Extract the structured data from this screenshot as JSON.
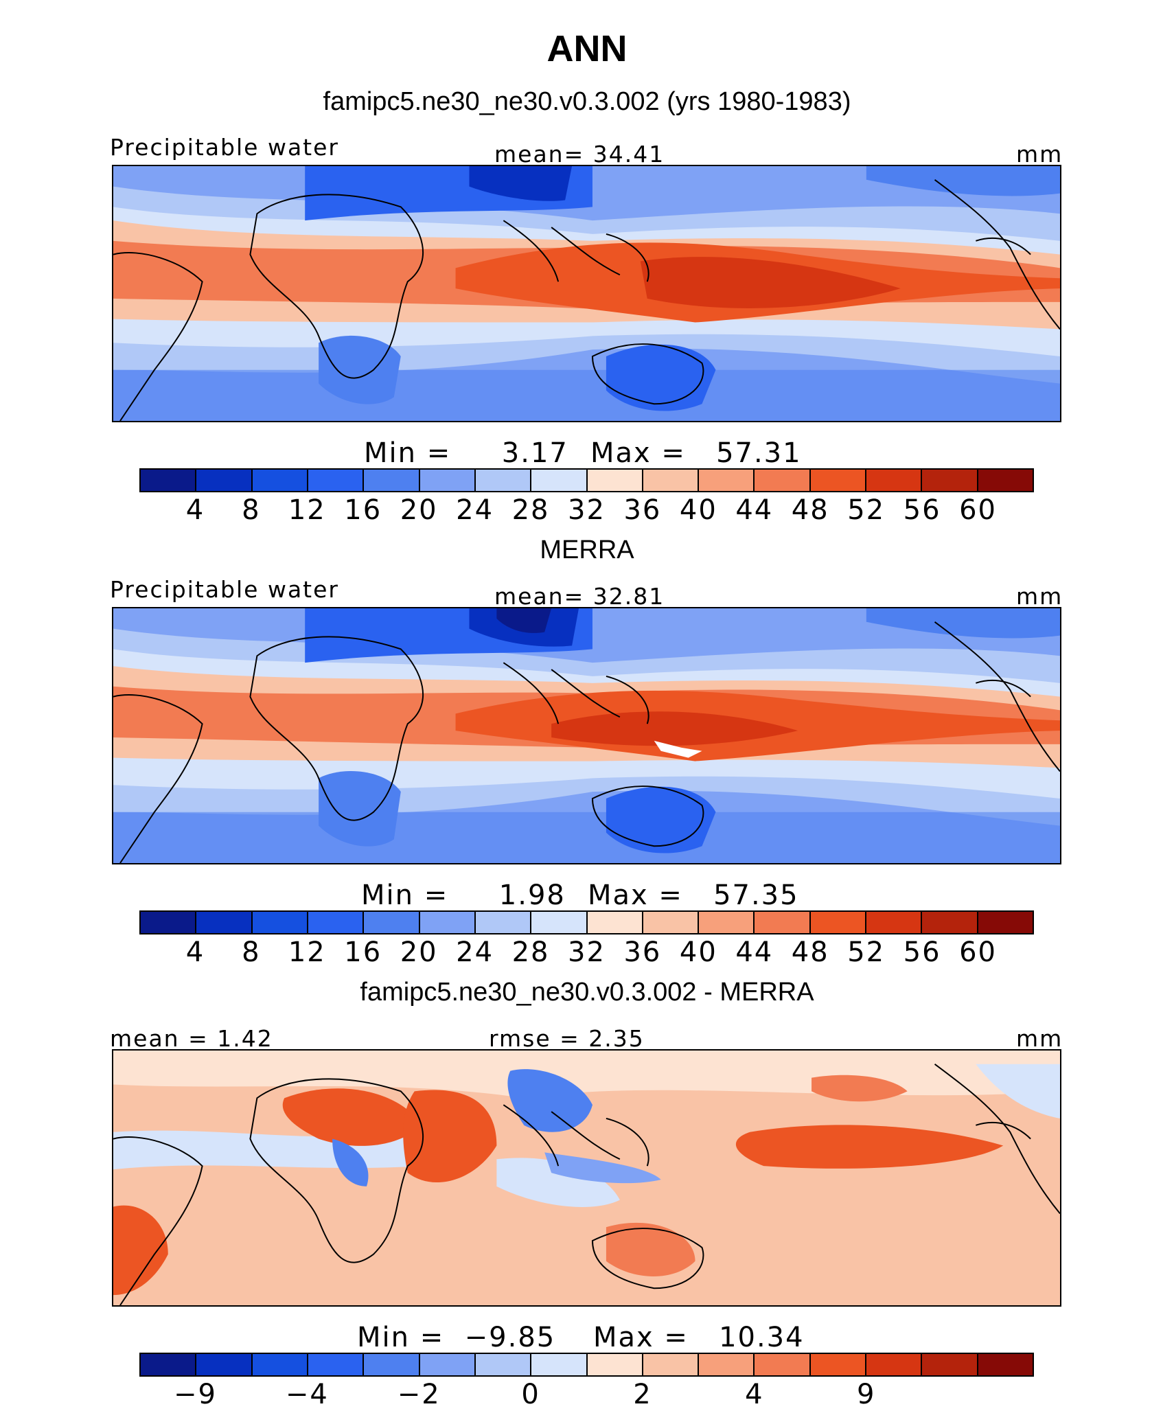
{
  "title": "ANN",
  "colors": {
    "scale": [
      "#0a1a8a",
      "#0730c0",
      "#1550e0",
      "#2a62f0",
      "#4e80f0",
      "#7fa2f5",
      "#b0c8f7",
      "#d6e4fb",
      "#fde3d2",
      "#f9c3a6",
      "#f7a07b",
      "#f27b52",
      "#ec5523",
      "#d63612",
      "#b4230c",
      "#860a06"
    ]
  },
  "panels": [
    {
      "id": "model",
      "heading": "famipc5.ne30_ne30.v0.3.002 (yrs 1980-1983)",
      "left_label": "Precipitable water",
      "center_label": "mean=  34.41",
      "right_label": "mm",
      "min_text": "Min =     3.17",
      "max_text": "Max =   57.31",
      "min": 3.17,
      "max": 57.31,
      "mean": 34.41,
      "contour_levels": [
        "4",
        "8",
        "12",
        "16",
        "20",
        "24",
        "28",
        "32",
        "36",
        "40",
        "44",
        "48",
        "52",
        "56",
        "60"
      ]
    },
    {
      "id": "obs",
      "heading": "MERRA",
      "left_label": "Precipitable water",
      "center_label": "mean=  32.81",
      "right_label": "mm",
      "min_text": "Min =     1.98",
      "max_text": "Max =   57.35",
      "min": 1.98,
      "max": 57.35,
      "mean": 32.81,
      "contour_levels": [
        "4",
        "8",
        "12",
        "16",
        "20",
        "24",
        "28",
        "32",
        "36",
        "40",
        "44",
        "48",
        "52",
        "56",
        "60"
      ]
    },
    {
      "id": "diff",
      "heading": "famipc5.ne30_ne30.v0.3.002 - MERRA",
      "left_label": "mean =   1.42",
      "center_label": "rmse =   2.35",
      "right_label": "mm",
      "min_text": "Min =  −9.85",
      "max_text": "Max =   10.34",
      "min": -9.85,
      "max": 10.34,
      "mean": 1.42,
      "rmse": 2.35,
      "contour_levels": [
        "−9",
        "",
        "−4",
        "",
        "−2",
        "",
        "0",
        "",
        "2",
        "",
        "4",
        "",
        "9",
        "",
        ""
      ]
    }
  ]
}
